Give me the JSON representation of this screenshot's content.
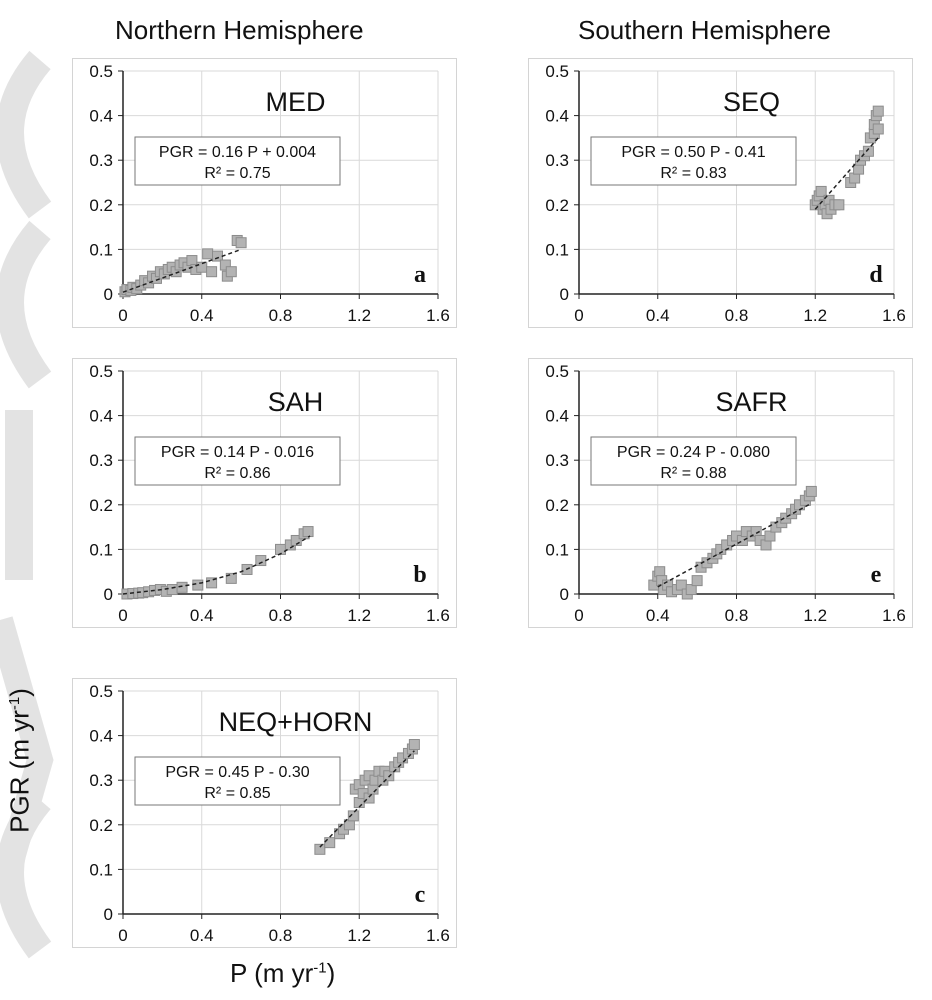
{
  "headers": {
    "northern": "Northern Hemisphere",
    "southern": "Southern Hemisphere"
  },
  "axis_labels": {
    "y_main": "PGR (m yr",
    "y_sup": "-1",
    "y_close": ")",
    "x_main": "P (m yr",
    "x_sup": "-1",
    "x_close": ")"
  },
  "colors": {
    "marker_fill": "#b3b3b3",
    "marker_stroke": "#8c8c8c",
    "grid": "#d9d9d9",
    "axis": "#222222",
    "watermark": "#e3e3e3"
  },
  "chart_data": [
    {
      "id": "a",
      "type": "scatter",
      "title": "MED",
      "letter": "a",
      "equation": "PGR = 0.16 P + 0.004",
      "r2": "R² = 0.75",
      "xlim": [
        0,
        1.6
      ],
      "ylim": [
        0,
        0.5
      ],
      "xticks": [
        0,
        0.4,
        0.8,
        1.2,
        1.6
      ],
      "xtick_labels": [
        "0",
        "0.4",
        "0.8",
        "1.2",
        "1.6"
      ],
      "yticks": [
        0,
        0.1,
        0.2,
        0.3,
        0.4,
        0.5
      ],
      "ytick_labels": [
        "0",
        "0.1",
        "0.2",
        "0.3",
        "0.4",
        "0.5"
      ],
      "grid": true,
      "trend": {
        "slope": 0.16,
        "intercept": 0.004,
        "x_range": [
          0,
          0.6
        ]
      },
      "points": [
        [
          0.01,
          0.005
        ],
        [
          0.02,
          0.01
        ],
        [
          0.04,
          0.008
        ],
        [
          0.05,
          0.015
        ],
        [
          0.07,
          0.012
        ],
        [
          0.09,
          0.02
        ],
        [
          0.11,
          0.03
        ],
        [
          0.13,
          0.025
        ],
        [
          0.15,
          0.04
        ],
        [
          0.17,
          0.035
        ],
        [
          0.19,
          0.05
        ],
        [
          0.21,
          0.045
        ],
        [
          0.23,
          0.055
        ],
        [
          0.25,
          0.06
        ],
        [
          0.27,
          0.05
        ],
        [
          0.29,
          0.065
        ],
        [
          0.31,
          0.07
        ],
        [
          0.33,
          0.06
        ],
        [
          0.35,
          0.075
        ],
        [
          0.37,
          0.055
        ],
        [
          0.4,
          0.06
        ],
        [
          0.43,
          0.09
        ],
        [
          0.45,
          0.05
        ],
        [
          0.48,
          0.085
        ],
        [
          0.52,
          0.065
        ],
        [
          0.53,
          0.04
        ],
        [
          0.55,
          0.05
        ],
        [
          0.58,
          0.12
        ],
        [
          0.6,
          0.115
        ]
      ]
    },
    {
      "id": "b",
      "type": "scatter",
      "title": "SAH",
      "letter": "b",
      "equation": "PGR = 0.14 P - 0.016",
      "r2": "R² = 0.86",
      "xlim": [
        0,
        1.6
      ],
      "ylim": [
        0,
        0.5
      ],
      "xticks": [
        0,
        0.4,
        0.8,
        1.2,
        1.6
      ],
      "xtick_labels": [
        "0",
        "0.4",
        "0.8",
        "1.2",
        "1.6"
      ],
      "yticks": [
        0,
        0.1,
        0.2,
        0.3,
        0.4,
        0.5
      ],
      "ytick_labels": [
        "0",
        "0.1",
        "0.2",
        "0.3",
        "0.4",
        "0.5"
      ],
      "grid": true,
      "trend": {
        "slope": 0.14,
        "intercept": -0.016,
        "x_range": [
          0.12,
          0.95
        ],
        "curve": [
          [
            0.0,
            0.0
          ],
          [
            0.2,
            0.01
          ],
          [
            0.4,
            0.025
          ],
          [
            0.6,
            0.05
          ],
          [
            0.8,
            0.09
          ],
          [
            0.95,
            0.13
          ]
        ]
      },
      "points": [
        [
          0.02,
          0.0
        ],
        [
          0.05,
          0.001
        ],
        [
          0.08,
          0.002
        ],
        [
          0.1,
          0.003
        ],
        [
          0.13,
          0.005
        ],
        [
          0.16,
          0.008
        ],
        [
          0.19,
          0.01
        ],
        [
          0.22,
          0.006
        ],
        [
          0.25,
          0.01
        ],
        [
          0.3,
          0.015
        ],
        [
          0.38,
          0.02
        ],
        [
          0.45,
          0.025
        ],
        [
          0.55,
          0.035
        ],
        [
          0.63,
          0.055
        ],
        [
          0.7,
          0.075
        ],
        [
          0.8,
          0.1
        ],
        [
          0.85,
          0.11
        ],
        [
          0.88,
          0.12
        ],
        [
          0.92,
          0.135
        ],
        [
          0.94,
          0.14
        ]
      ]
    },
    {
      "id": "c",
      "type": "scatter",
      "title": "NEQ+HORN",
      "letter": "c",
      "equation": "PGR = 0.45 P - 0.30",
      "r2": "R² = 0.85",
      "xlim": [
        0,
        1.6
      ],
      "ylim": [
        0,
        0.5
      ],
      "xticks": [
        0,
        0.4,
        0.8,
        1.2,
        1.6
      ],
      "xtick_labels": [
        "0",
        "0.4",
        "0.8",
        "1.2",
        "1.6"
      ],
      "yticks": [
        0,
        0.1,
        0.2,
        0.3,
        0.4,
        0.5
      ],
      "ytick_labels": [
        "0",
        "0.1",
        "0.2",
        "0.3",
        "0.4",
        "0.5"
      ],
      "grid": true,
      "trend": {
        "slope": 0.45,
        "intercept": -0.3,
        "x_range": [
          1.0,
          1.48
        ]
      },
      "points": [
        [
          1.0,
          0.145
        ],
        [
          1.05,
          0.16
        ],
        [
          1.1,
          0.18
        ],
        [
          1.12,
          0.19
        ],
        [
          1.15,
          0.2
        ],
        [
          1.17,
          0.22
        ],
        [
          1.18,
          0.28
        ],
        [
          1.2,
          0.25
        ],
        [
          1.2,
          0.29
        ],
        [
          1.22,
          0.27
        ],
        [
          1.23,
          0.3
        ],
        [
          1.25,
          0.26
        ],
        [
          1.25,
          0.31
        ],
        [
          1.27,
          0.28
        ],
        [
          1.28,
          0.3
        ],
        [
          1.3,
          0.32
        ],
        [
          1.32,
          0.3
        ],
        [
          1.33,
          0.32
        ],
        [
          1.35,
          0.31
        ],
        [
          1.38,
          0.33
        ],
        [
          1.4,
          0.34
        ],
        [
          1.42,
          0.35
        ],
        [
          1.45,
          0.36
        ],
        [
          1.47,
          0.37
        ],
        [
          1.48,
          0.38
        ]
      ]
    },
    {
      "id": "d",
      "type": "scatter",
      "title": "SEQ",
      "letter": "d",
      "equation": "PGR = 0.50 P - 0.41",
      "r2": "R² = 0.83",
      "xlim": [
        0,
        1.6
      ],
      "ylim": [
        0,
        0.5
      ],
      "xticks": [
        0,
        0.4,
        0.8,
        1.2,
        1.6
      ],
      "xtick_labels": [
        "0",
        "0.4",
        "0.8",
        "1.2",
        "1.6"
      ],
      "yticks": [
        0,
        0.1,
        0.2,
        0.3,
        0.4,
        0.5
      ],
      "ytick_labels": [
        "0",
        "0.1",
        "0.2",
        "0.3",
        "0.4",
        "0.5"
      ],
      "grid": true,
      "trend": {
        "slope": 0.5,
        "intercept": -0.41,
        "x_range": [
          1.2,
          1.52
        ]
      },
      "points": [
        [
          1.2,
          0.2
        ],
        [
          1.21,
          0.21
        ],
        [
          1.22,
          0.22
        ],
        [
          1.23,
          0.23
        ],
        [
          1.24,
          0.19
        ],
        [
          1.25,
          0.2
        ],
        [
          1.26,
          0.18
        ],
        [
          1.27,
          0.21
        ],
        [
          1.28,
          0.19
        ],
        [
          1.3,
          0.2
        ],
        [
          1.32,
          0.2
        ],
        [
          1.38,
          0.25
        ],
        [
          1.4,
          0.26
        ],
        [
          1.42,
          0.28
        ],
        [
          1.43,
          0.3
        ],
        [
          1.45,
          0.31
        ],
        [
          1.47,
          0.32
        ],
        [
          1.48,
          0.35
        ],
        [
          1.5,
          0.36
        ],
        [
          1.5,
          0.38
        ],
        [
          1.51,
          0.4
        ],
        [
          1.52,
          0.41
        ],
        [
          1.52,
          0.37
        ]
      ]
    },
    {
      "id": "e",
      "type": "scatter",
      "title": "SAFR",
      "letter": "e",
      "equation": "PGR = 0.24 P - 0.080",
      "r2": "R² = 0.88",
      "xlim": [
        0,
        1.6
      ],
      "ylim": [
        0,
        0.5
      ],
      "xticks": [
        0,
        0.4,
        0.8,
        1.2,
        1.6
      ],
      "xtick_labels": [
        "0",
        "0.4",
        "0.8",
        "1.2",
        "1.6"
      ],
      "yticks": [
        0,
        0.1,
        0.2,
        0.3,
        0.4,
        0.5
      ],
      "ytick_labels": [
        "0",
        "0.1",
        "0.2",
        "0.3",
        "0.4",
        "0.5"
      ],
      "grid": true,
      "trend": {
        "slope": 0.24,
        "intercept": -0.08,
        "x_range": [
          0.4,
          1.18
        ]
      },
      "points": [
        [
          0.38,
          0.02
        ],
        [
          0.4,
          0.04
        ],
        [
          0.41,
          0.05
        ],
        [
          0.42,
          0.03
        ],
        [
          0.43,
          0.01
        ],
        [
          0.45,
          0.02
        ],
        [
          0.47,
          0.005
        ],
        [
          0.5,
          0.01
        ],
        [
          0.52,
          0.02
        ],
        [
          0.55,
          0.0
        ],
        [
          0.57,
          0.01
        ],
        [
          0.6,
          0.03
        ],
        [
          0.62,
          0.06
        ],
        [
          0.65,
          0.07
        ],
        [
          0.68,
          0.08
        ],
        [
          0.7,
          0.09
        ],
        [
          0.72,
          0.1
        ],
        [
          0.75,
          0.11
        ],
        [
          0.78,
          0.12
        ],
        [
          0.8,
          0.13
        ],
        [
          0.83,
          0.12
        ],
        [
          0.85,
          0.14
        ],
        [
          0.88,
          0.13
        ],
        [
          0.9,
          0.14
        ],
        [
          0.92,
          0.12
        ],
        [
          0.95,
          0.11
        ],
        [
          0.97,
          0.13
        ],
        [
          1.0,
          0.15
        ],
        [
          1.03,
          0.16
        ],
        [
          1.05,
          0.17
        ],
        [
          1.08,
          0.18
        ],
        [
          1.1,
          0.19
        ],
        [
          1.12,
          0.2
        ],
        [
          1.15,
          0.21
        ],
        [
          1.17,
          0.22
        ],
        [
          1.18,
          0.23
        ]
      ]
    }
  ]
}
